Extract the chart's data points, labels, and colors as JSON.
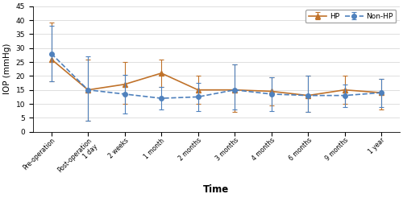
{
  "x_labels": [
    "Pre-operation",
    "Post-operation\n1 day",
    "2 weeks",
    "1 month",
    "2 months",
    "3 months",
    "4 months",
    "6 months",
    "9 months",
    "1 year"
  ],
  "non_hp_mean": [
    28,
    15,
    13.5,
    12,
    12.5,
    15,
    13.5,
    13,
    13,
    14
  ],
  "non_hp_err_upper": [
    10,
    12,
    7,
    4,
    5,
    9,
    6,
    7,
    4,
    5
  ],
  "non_hp_err_lower": [
    10,
    11,
    7,
    4,
    5,
    7,
    6,
    6,
    4,
    5
  ],
  "hp_mean": [
    26,
    15,
    17,
    21,
    15,
    15,
    14.5,
    13,
    15,
    14
  ],
  "hp_err_upper": [
    13,
    11,
    8,
    5,
    5,
    9,
    5,
    7,
    5,
    5
  ],
  "hp_err_lower": [
    8,
    11,
    7,
    5,
    5,
    8,
    5,
    6,
    5,
    6
  ],
  "non_hp_color": "#4f81bd",
  "hp_color": "#c0722a",
  "ylabel": "IOP (mmHg)",
  "xlabel": "Time",
  "ylim": [
    0,
    45
  ],
  "yticks": [
    0,
    5,
    10,
    15,
    20,
    25,
    30,
    35,
    40,
    45
  ],
  "figsize": [
    5.0,
    2.46
  ],
  "dpi": 100
}
